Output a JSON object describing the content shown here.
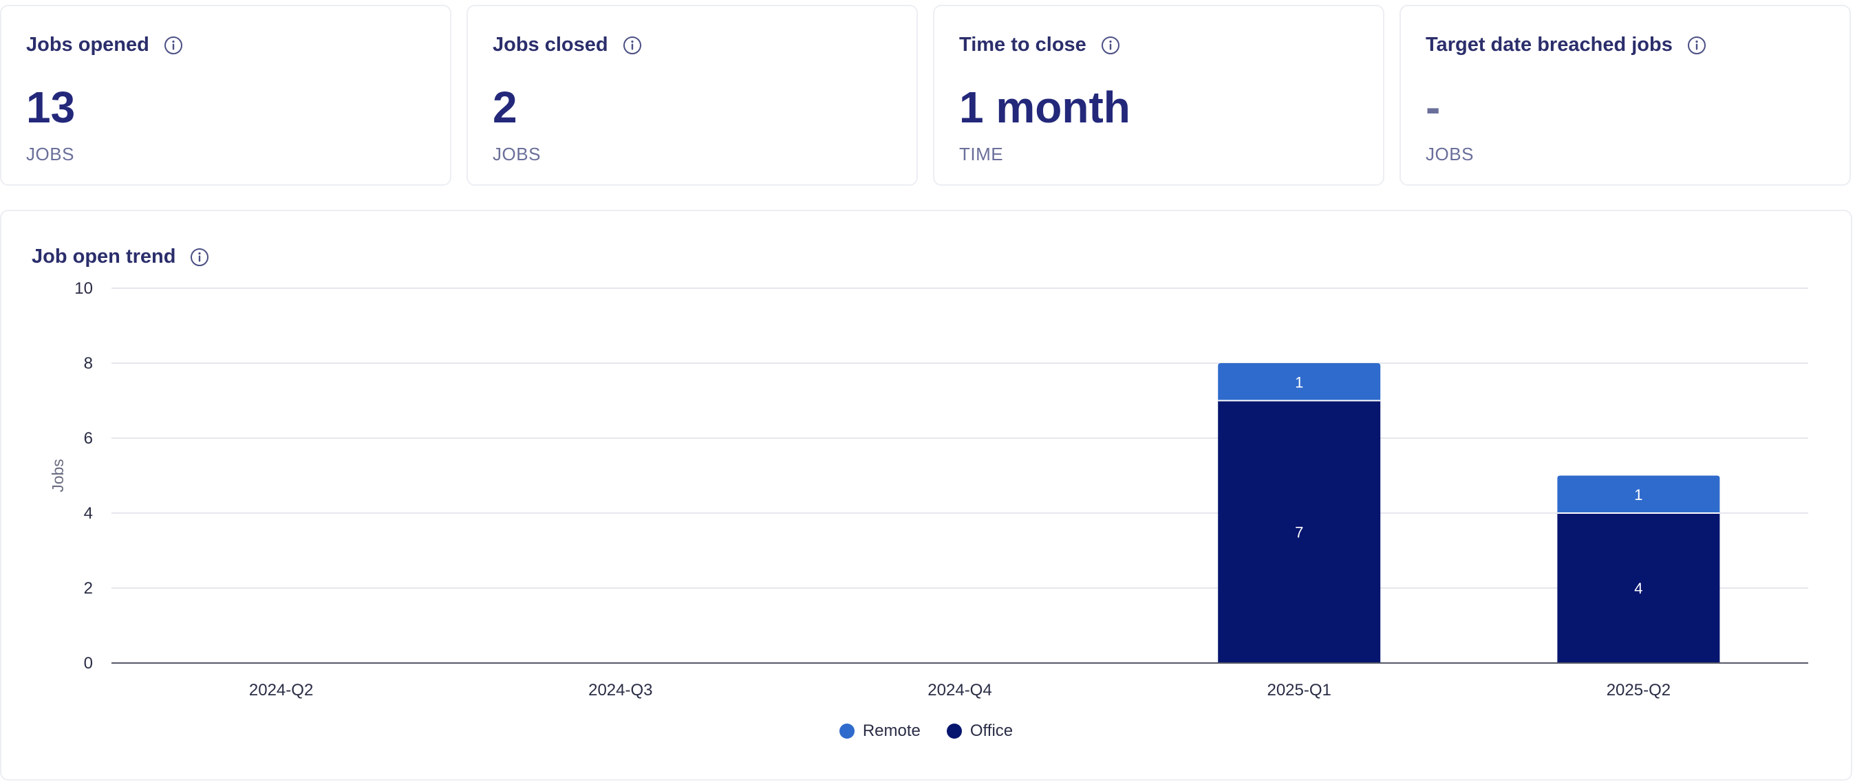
{
  "metrics": [
    {
      "title": "Jobs opened",
      "value": "13",
      "unit": "JOBS"
    },
    {
      "title": "Jobs closed",
      "value": "2",
      "unit": "JOBS"
    },
    {
      "title": "Time to close",
      "value": "1 month",
      "unit": "TIME"
    },
    {
      "title": "Target date breached jobs",
      "value": "-",
      "unit": "JOBS"
    }
  ],
  "colors": {
    "remote": "#2f6bcc",
    "office": "#06156e",
    "title": "#2b2e6b",
    "value": "#23287a",
    "grid": "#e6e7ee",
    "axis": "#555866"
  },
  "icons": {
    "info": "info-circle-icon"
  },
  "chart_data": {
    "type": "bar",
    "stacked": true,
    "title": "Job open trend",
    "xlabel": "",
    "ylabel": "Jobs",
    "ylim": [
      0,
      10
    ],
    "yticks": [
      0,
      2,
      4,
      6,
      8,
      10
    ],
    "grid": true,
    "legend_position": "bottom-center",
    "categories": [
      "2024-Q2",
      "2024-Q3",
      "2024-Q4",
      "2025-Q1",
      "2025-Q2"
    ],
    "series": [
      {
        "name": "Office",
        "color": "#06156e",
        "values": [
          0,
          0,
          0,
          7,
          4
        ]
      },
      {
        "name": "Remote",
        "color": "#2f6bcc",
        "values": [
          0,
          0,
          0,
          1,
          1
        ]
      }
    ],
    "legend": [
      "Remote",
      "Office"
    ]
  }
}
